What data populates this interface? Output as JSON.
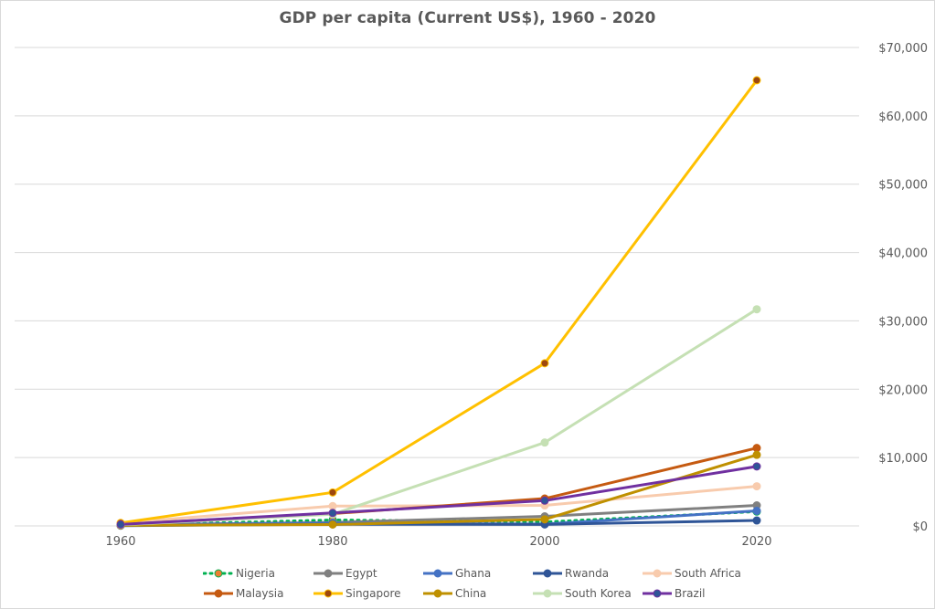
{
  "chart_data": {
    "type": "line",
    "title": "GDP per capita (Current US$), 1960 - 2020",
    "xlabel": "",
    "ylabel": "",
    "x": [
      "1960",
      "1980",
      "2000",
      "2020"
    ],
    "ylim": [
      0,
      70000
    ],
    "yticks": [
      0,
      10000,
      20000,
      30000,
      40000,
      50000,
      60000,
      70000
    ],
    "ytick_labels": [
      "$0",
      "$10,000",
      "$20,000",
      "$30,000",
      "$40,000",
      "$50,000",
      "$60,000",
      "$70,000"
    ],
    "y_axis_side": "right",
    "grid": true,
    "legend_position": "bottom",
    "series": [
      {
        "name": "Nigeria",
        "color": "#00b050",
        "marker": "#ed7d31",
        "dash": "dotted",
        "values": [
          93,
          870,
          570,
          2100
        ]
      },
      {
        "name": "Egypt",
        "color": "#808080",
        "marker": "#808080",
        "dash": "solid",
        "values": [
          150,
          500,
          1400,
          3000
        ]
      },
      {
        "name": "Ghana",
        "color": "#4472c4",
        "marker": "#4472c4",
        "dash": "solid",
        "values": [
          180,
          410,
          260,
          2200
        ]
      },
      {
        "name": "Rwanda",
        "color": "#2f5597",
        "marker": "#2f5597",
        "dash": "solid",
        "values": [
          40,
          240,
          220,
          800
        ]
      },
      {
        "name": "South Africa",
        "color": "#f8cbad",
        "marker": "#f8cbad",
        "dash": "solid",
        "values": [
          440,
          2900,
          3000,
          5800
        ]
      },
      {
        "name": "Malaysia",
        "color": "#c55a11",
        "marker": "#c55a11",
        "dash": "solid",
        "values": [
          240,
          1800,
          4000,
          11400
        ]
      },
      {
        "name": "Singapore",
        "color": "#ffc000",
        "marker": "#9e480e",
        "dash": "solid",
        "values": [
          430,
          4900,
          23800,
          65200
        ]
      },
      {
        "name": "China",
        "color": "#bf9000",
        "marker": "#bf9000",
        "dash": "solid",
        "values": [
          90,
          200,
          960,
          10400
        ]
      },
      {
        "name": "South Korea",
        "color": "#c5e0b4",
        "marker": "#c5e0b4",
        "dash": "solid",
        "values": [
          160,
          1700,
          12200,
          31700
        ]
      },
      {
        "name": "Brazil",
        "color": "#7030a0",
        "marker": "#2f5597",
        "dash": "solid",
        "values": [
          210,
          1900,
          3700,
          8700
        ]
      }
    ]
  }
}
